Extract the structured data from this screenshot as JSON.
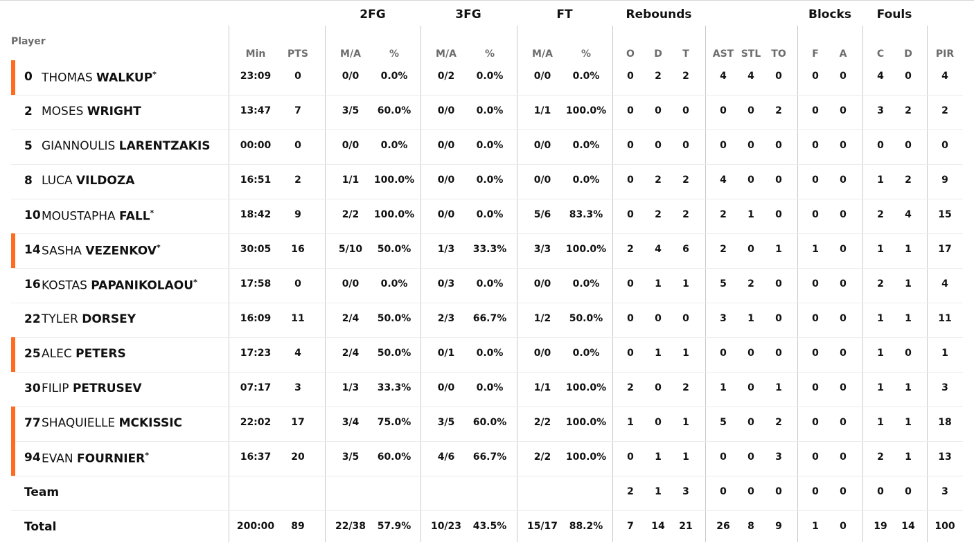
{
  "groups": [
    "2FG",
    "3FG",
    "FT",
    "Rebounds",
    "Blocks",
    "Fouls"
  ],
  "player_header": "Player",
  "subheaders": [
    "Min",
    "PTS",
    "M/A",
    "%",
    "M/A",
    "%",
    "M/A",
    "%",
    "O",
    "D",
    "T",
    "AST",
    "STL",
    "TO",
    "F",
    "A",
    "C",
    "D",
    "PIR"
  ],
  "starter_mark": "*",
  "accent_color": "#ff6b1f",
  "players": [
    {
      "num": "0",
      "first": "THOMAS",
      "last": "WALKUP",
      "star": "*",
      "starter_bar": true,
      "stats": [
        "23:09",
        "0",
        "0/0",
        "0.0%",
        "0/2",
        "0.0%",
        "0/0",
        "0.0%",
        "0",
        "2",
        "2",
        "4",
        "4",
        "0",
        "0",
        "0",
        "4",
        "0",
        "4"
      ]
    },
    {
      "num": "2",
      "first": "MOSES",
      "last": "WRIGHT",
      "star": "",
      "starter_bar": false,
      "stats": [
        "13:47",
        "7",
        "3/5",
        "60.0%",
        "0/0",
        "0.0%",
        "1/1",
        "100.0%",
        "0",
        "0",
        "0",
        "0",
        "0",
        "2",
        "0",
        "0",
        "3",
        "2",
        "2"
      ]
    },
    {
      "num": "5",
      "first": "GIANNOULIS",
      "last": "LARENTZAKIS",
      "star": "",
      "starter_bar": false,
      "stats": [
        "00:00",
        "0",
        "0/0",
        "0.0%",
        "0/0",
        "0.0%",
        "0/0",
        "0.0%",
        "0",
        "0",
        "0",
        "0",
        "0",
        "0",
        "0",
        "0",
        "0",
        "0",
        "0"
      ]
    },
    {
      "num": "8",
      "first": "LUCA",
      "last": "VILDOZA",
      "star": "",
      "starter_bar": false,
      "stats": [
        "16:51",
        "2",
        "1/1",
        "100.0%",
        "0/0",
        "0.0%",
        "0/0",
        "0.0%",
        "0",
        "2",
        "2",
        "4",
        "0",
        "0",
        "0",
        "0",
        "1",
        "2",
        "9"
      ]
    },
    {
      "num": "10",
      "first": "MOUSTAPHA",
      "last": "FALL",
      "star": "*",
      "starter_bar": false,
      "stats": [
        "18:42",
        "9",
        "2/2",
        "100.0%",
        "0/0",
        "0.0%",
        "5/6",
        "83.3%",
        "0",
        "2",
        "2",
        "2",
        "1",
        "0",
        "0",
        "0",
        "2",
        "4",
        "15"
      ]
    },
    {
      "num": "14",
      "first": "SASHA",
      "last": "VEZENKOV",
      "star": "*",
      "starter_bar": true,
      "stats": [
        "30:05",
        "16",
        "5/10",
        "50.0%",
        "1/3",
        "33.3%",
        "3/3",
        "100.0%",
        "2",
        "4",
        "6",
        "2",
        "0",
        "1",
        "1",
        "0",
        "1",
        "1",
        "17"
      ]
    },
    {
      "num": "16",
      "first": "KOSTAS",
      "last": "PAPANIKOLAOU",
      "star": "*",
      "starter_bar": false,
      "stats": [
        "17:58",
        "0",
        "0/0",
        "0.0%",
        "0/3",
        "0.0%",
        "0/0",
        "0.0%",
        "0",
        "1",
        "1",
        "5",
        "2",
        "0",
        "0",
        "0",
        "2",
        "1",
        "4"
      ]
    },
    {
      "num": "22",
      "first": "TYLER",
      "last": "DORSEY",
      "star": "",
      "starter_bar": false,
      "stats": [
        "16:09",
        "11",
        "2/4",
        "50.0%",
        "2/3",
        "66.7%",
        "1/2",
        "50.0%",
        "0",
        "0",
        "0",
        "3",
        "1",
        "0",
        "0",
        "0",
        "1",
        "1",
        "11"
      ]
    },
    {
      "num": "25",
      "first": "ALEC",
      "last": "PETERS",
      "star": "",
      "starter_bar": true,
      "stats": [
        "17:23",
        "4",
        "2/4",
        "50.0%",
        "0/1",
        "0.0%",
        "0/0",
        "0.0%",
        "0",
        "1",
        "1",
        "0",
        "0",
        "0",
        "0",
        "0",
        "1",
        "0",
        "1"
      ]
    },
    {
      "num": "30",
      "first": "FILIP",
      "last": "PETRUSEV",
      "star": "",
      "starter_bar": false,
      "stats": [
        "07:17",
        "3",
        "1/3",
        "33.3%",
        "0/0",
        "0.0%",
        "1/1",
        "100.0%",
        "2",
        "0",
        "2",
        "1",
        "0",
        "1",
        "0",
        "0",
        "1",
        "1",
        "3"
      ]
    },
    {
      "num": "77",
      "first": "SHAQUIELLE",
      "last": "MCKISSIC",
      "star": "",
      "starter_bar": true,
      "stats": [
        "22:02",
        "17",
        "3/4",
        "75.0%",
        "3/5",
        "60.0%",
        "2/2",
        "100.0%",
        "1",
        "0",
        "1",
        "5",
        "0",
        "2",
        "0",
        "0",
        "1",
        "1",
        "18"
      ]
    },
    {
      "num": "94",
      "first": "EVAN",
      "last": "FOURNIER",
      "star": "*",
      "starter_bar": true,
      "stats": [
        "16:37",
        "20",
        "3/5",
        "60.0%",
        "4/6",
        "66.7%",
        "2/2",
        "100.0%",
        "0",
        "1",
        "1",
        "0",
        "0",
        "3",
        "0",
        "0",
        "2",
        "1",
        "13"
      ]
    }
  ],
  "team": {
    "label": "Team",
    "stats": [
      "",
      "",
      "",
      "",
      "",
      "",
      "",
      "",
      "2",
      "1",
      "3",
      "0",
      "0",
      "0",
      "0",
      "0",
      "0",
      "0",
      "3"
    ]
  },
  "total": {
    "label": "Total",
    "stats": [
      "200:00",
      "89",
      "22/38",
      "57.9%",
      "10/23",
      "43.5%",
      "15/17",
      "88.2%",
      "7",
      "14",
      "21",
      "26",
      "8",
      "9",
      "1",
      "0",
      "19",
      "14",
      "100"
    ]
  }
}
